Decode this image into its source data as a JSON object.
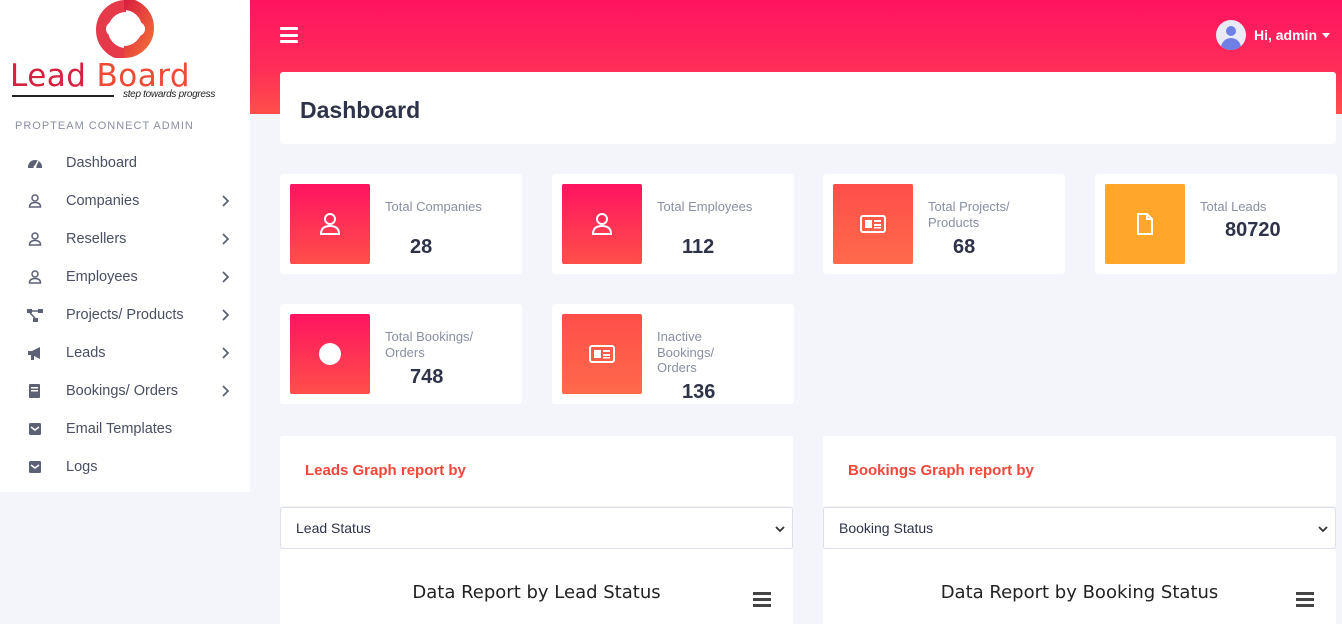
{
  "brand": {
    "word1": "Lead",
    "word2": "Board",
    "tagline": "step towards progress",
    "colors": {
      "primary": "#ff1361",
      "accent": "#ef4a36"
    }
  },
  "sidebar": {
    "section_label": "PROPTEAM CONNECT ADMIN",
    "items": [
      {
        "label": "Dashboard",
        "icon": "dashboard-icon",
        "has_submenu": false
      },
      {
        "label": "Companies",
        "icon": "user-icon",
        "has_submenu": true
      },
      {
        "label": "Resellers",
        "icon": "user-icon",
        "has_submenu": true
      },
      {
        "label": "Employees",
        "icon": "user-icon",
        "has_submenu": true
      },
      {
        "label": "Projects/ Products",
        "icon": "hierarchy-icon",
        "has_submenu": true
      },
      {
        "label": "Leads",
        "icon": "megaphone-icon",
        "has_submenu": true
      },
      {
        "label": "Bookings/ Orders",
        "icon": "book-icon",
        "has_submenu": true
      },
      {
        "label": "Email Templates",
        "icon": "envelope-icon",
        "has_submenu": false
      },
      {
        "label": "Logs",
        "icon": "envelope-icon",
        "has_submenu": false
      }
    ]
  },
  "header": {
    "user_greeting": "Hi, admin"
  },
  "page": {
    "title": "Dashboard"
  },
  "stats": [
    {
      "label": "Total Companies",
      "value": "28",
      "icon": "user-icon"
    },
    {
      "label": "Total Employees",
      "value": "112",
      "icon": "user-icon"
    },
    {
      "label": "Total Projects/ Products",
      "value": "68",
      "icon": "newspaper-icon"
    },
    {
      "label": "Total Leads",
      "value": "80720",
      "icon": "file-icon"
    },
    {
      "label": "Total Bookings/ Orders",
      "value": "748",
      "icon": "circle-icon"
    },
    {
      "label": "Inactive Bookings/ Orders",
      "value": "136",
      "icon": "newspaper-icon"
    }
  ],
  "leads_panel": {
    "title": "Leads Graph report by",
    "select_value": "Lead Status",
    "chart_title": "Data Report by Lead Status"
  },
  "bookings_panel": {
    "title": "Bookings Graph report by",
    "select_value": "Booking Status",
    "chart_title": "Data Report by Booking Status"
  }
}
